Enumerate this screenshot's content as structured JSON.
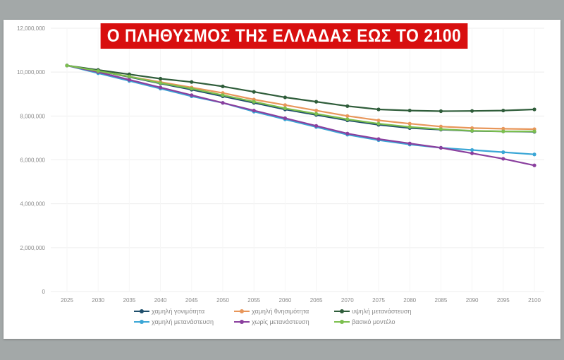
{
  "title": "Ο ΠΛΗΘΥΣΜΟΣ ΤΗΣ ΕΛΛΑΔΑΣ ΕΩΣ ΤΟ 2100",
  "chart_data": {
    "type": "line",
    "title": "Ο ΠΛΗΘΥΣΜΟΣ ΤΗΣ ΕΛΛΑΔΑΣ ΕΩΣ ΤΟ 2100",
    "xlabel": "",
    "ylabel": "",
    "ylim": [
      0,
      12000000
    ],
    "yticks": [
      "0",
      "2,000,000",
      "4,000,000",
      "6,000,000",
      "8,000,000",
      "10,000,000",
      "12,000,000"
    ],
    "grid": true,
    "legend_position": "bottom",
    "x": [
      "2025",
      "2030",
      "2035",
      "2040",
      "2045",
      "2050",
      "2055",
      "2060",
      "2065",
      "2070",
      "2075",
      "2080",
      "2085",
      "2090",
      "2095",
      "2100"
    ],
    "series": [
      {
        "name": "χαμηλή γονιμότητα",
        "color": "#1f4e6b",
        "values": [
          10300000,
          10050000,
          9780000,
          9480000,
          9200000,
          8900000,
          8600000,
          8300000,
          8050000,
          7800000,
          7600000,
          7450000,
          7380000,
          7320000,
          7300000,
          7280000
        ]
      },
      {
        "name": "χαμηλή θνησιμότητα",
        "color": "#e8965a",
        "values": [
          10300000,
          10050000,
          9800000,
          9550000,
          9300000,
          9050000,
          8750000,
          8500000,
          8250000,
          8000000,
          7800000,
          7650000,
          7520000,
          7450000,
          7420000,
          7400000
        ]
      },
      {
        "name": "υψηλή μετανάστευση",
        "color": "#2f5d3a",
        "values": [
          10300000,
          10100000,
          9900000,
          9700000,
          9550000,
          9350000,
          9100000,
          8850000,
          8650000,
          8450000,
          8300000,
          8250000,
          8220000,
          8230000,
          8250000,
          8300000
        ]
      },
      {
        "name": "χαμηλή μετανάστευση",
        "color": "#3aa6d6",
        "values": [
          10300000,
          9950000,
          9600000,
          9250000,
          8900000,
          8600000,
          8200000,
          7850000,
          7500000,
          7150000,
          6900000,
          6700000,
          6550000,
          6450000,
          6350000,
          6250000
        ]
      },
      {
        "name": "χωρίς μετανάστευση",
        "color": "#8a3f9e",
        "values": [
          10300000,
          10000000,
          9650000,
          9300000,
          8950000,
          8600000,
          8250000,
          7900000,
          7550000,
          7200000,
          6950000,
          6750000,
          6550000,
          6300000,
          6050000,
          5750000
        ]
      },
      {
        "name": "βασικό μοντέλο",
        "color": "#7cbf4e",
        "values": [
          10300000,
          10050000,
          9800000,
          9500000,
          9250000,
          8950000,
          8650000,
          8350000,
          8100000,
          7850000,
          7650000,
          7500000,
          7400000,
          7330000,
          7300000,
          7300000
        ]
      }
    ]
  },
  "legend": [
    {
      "label": "χαμηλή γονιμότητα",
      "color": "#1f4e6b"
    },
    {
      "label": "χαμηλή θνησιμότητα",
      "color": "#e8965a"
    },
    {
      "label": "υψηλή μετανάστευση",
      "color": "#2f5d3a"
    },
    {
      "label": "χαμηλή μετανάστευση",
      "color": "#3aa6d6"
    },
    {
      "label": "χωρίς μετανάστευση",
      "color": "#8a3f9e"
    },
    {
      "label": "βασικό μοντέλο",
      "color": "#7cbf4e"
    }
  ]
}
